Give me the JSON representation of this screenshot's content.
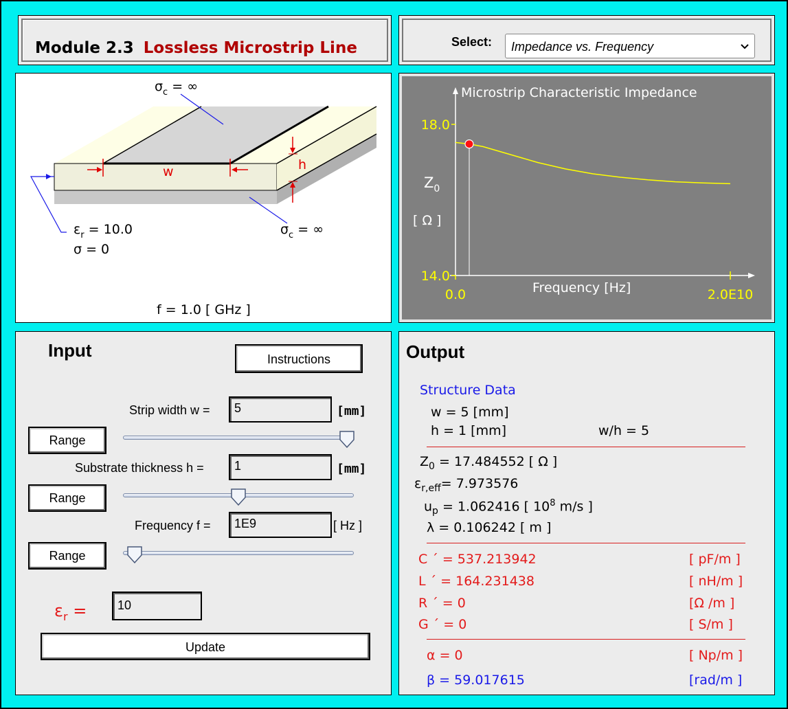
{
  "header": {
    "module": "Module 2.3",
    "title": "Lossless Microstrip Line",
    "select_label": "Select:",
    "select_value": "Impedance vs. Frequency"
  },
  "diagram": {
    "sigma_c_top": "σc = ∞",
    "sigma_c_bottom": "σc = ∞",
    "w_label": "w",
    "h_label": "h",
    "eps_r": "εr  = 10.0",
    "sigma": "σ = 0",
    "freq": "f =  1.0   [ GHz ]"
  },
  "graph": {
    "title": "Microstrip Characteristic Impedance",
    "y_label": "Z0",
    "y_unit": "[ Ω ]",
    "x_label": "Frequency [Hz]",
    "y_top_tick": "18.0",
    "y_bottom_tick": "14.0",
    "x_left_tick": "0.0",
    "x_right_tick": "2.0E10"
  },
  "chart_data": {
    "type": "line",
    "title": "Microstrip Characteristic Impedance",
    "xlabel": "Frequency [Hz]",
    "ylabel": "Z0 [ Ω ]",
    "xlim": [
      0,
      20000000000
    ],
    "ylim": [
      14.0,
      18.0
    ],
    "series": [
      {
        "x": [
          0,
          1000000000,
          2000000000,
          4000000000,
          6000000000,
          8000000000,
          10000000000,
          12000000000,
          14000000000,
          16000000000,
          18000000000,
          20000000000
        ],
        "y": [
          17.52,
          17.48,
          17.41,
          17.2,
          16.99,
          16.82,
          16.69,
          16.6,
          16.53,
          16.48,
          16.45,
          16.43
        ]
      }
    ],
    "marker": {
      "x": 1000000000,
      "y": 17.48
    },
    "colors": {
      "line": "#ffff00",
      "axes": "#ffffff",
      "ticks": "#ffff00",
      "marker": "#ff0000",
      "background": "#808080"
    }
  },
  "input": {
    "heading": "Input",
    "instructions_label": "Instructions",
    "strip_width_label": "Strip width w =",
    "strip_width_value": "5",
    "strip_width_unit": "[mm]",
    "thickness_label": "Substrate thickness h =",
    "thickness_value": "1",
    "thickness_unit": "[mm]",
    "freq_label": "Frequency f =",
    "freq_value": "1E9",
    "freq_unit": "[ Hz ]",
    "range_label": "Range",
    "eps_label": "εr =",
    "eps_value": "10",
    "update_label": "Update",
    "sliders": {
      "width_level": 0.97,
      "thickness_level": 0.5,
      "freq_level": 0.05
    }
  },
  "output": {
    "heading": "Output",
    "structure_heading": "Structure Data",
    "w_line": "w  =  5 [mm]",
    "h_line": "h  =  1 [mm]",
    "wh_line": "w/h   =  5",
    "z0_line": "=  17.484552   [ Ω ]",
    "eps_eff_line": "= 7.973576",
    "up_line": "=  1.062416 [ 10",
    "up_unit": " m/s ]",
    "lambda_line": "λ  =  0.106242     [ m ]",
    "c_line": "C ´  =  537.213942",
    "c_unit": "[ pF/m ]",
    "l_line": "L ´  =  164.231438",
    "l_unit": "[ nH/m ]",
    "r_line": "R ´  =  0",
    "r_unit": "[Ω  /m ]",
    "g_line": "G ´  =  0",
    "g_unit": "[ S/m ]",
    "alpha_line": "α  =  0",
    "alpha_unit": "[ Np/m ]",
    "beta_line": "β  =  59.017615",
    "beta_unit": "[rad/m ]"
  }
}
